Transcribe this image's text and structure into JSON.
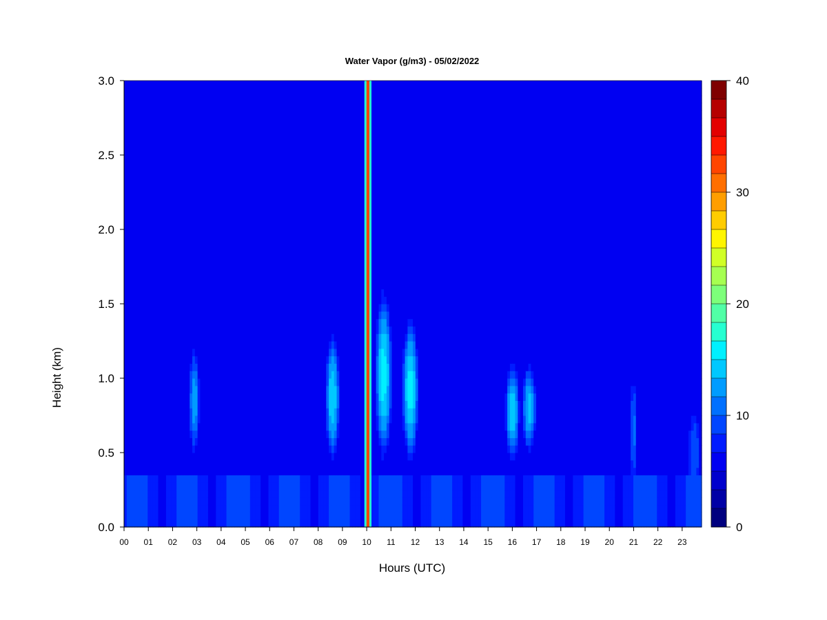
{
  "chart_data": {
    "type": "heatmap",
    "title": "Water Vapor (g/m3) - 05/02/2022",
    "xlabel": "Hours (UTC)",
    "ylabel": "Height (km)",
    "x_ticks": [
      "00",
      "01",
      "02",
      "03",
      "04",
      "05",
      "06",
      "07",
      "08",
      "09",
      "10",
      "11",
      "12",
      "13",
      "14",
      "15",
      "16",
      "17",
      "18",
      "19",
      "20",
      "21",
      "22",
      "23"
    ],
    "xlim": [
      0,
      23.8
    ],
    "y_ticks": [
      "0.0",
      "0.5",
      "1.0",
      "1.5",
      "2.0",
      "2.5",
      "3.0"
    ],
    "ylim": [
      0,
      3.0
    ],
    "colorbar": {
      "ticks": [
        "0",
        "10",
        "20",
        "30",
        "40"
      ],
      "range": [
        0,
        40
      ],
      "levels": 20,
      "colors": [
        "#00007f",
        "#0000a6",
        "#0000cd",
        "#0000f2",
        "#001bff",
        "#0046ff",
        "#0070ff",
        "#009cff",
        "#00c8ff",
        "#00f0ff",
        "#26ffd1",
        "#51ffa6",
        "#7dff7a",
        "#a6ff51",
        "#d1ff26",
        "#fff500",
        "#ffcc00",
        "#ff9e00",
        "#ff6f00",
        "#ff4500",
        "#ff1800",
        "#e30000",
        "#b60000",
        "#7f0000"
      ]
    },
    "background_value": 6,
    "upper_dry_value": 4,
    "features": [
      {
        "hour": 10.05,
        "height_from": 0.0,
        "height_to": 3.0,
        "width_h": 0.12,
        "value": 40,
        "note": "narrow vertical spike"
      },
      {
        "hour": 0.5,
        "height_from": 0.0,
        "height_to": 0.4,
        "width_h": 0.5,
        "value": 6
      },
      {
        "hour": 2.9,
        "height_from": 0.5,
        "height_to": 1.2,
        "width_h": 0.45,
        "value": 13
      },
      {
        "hour": 8.6,
        "height_from": 0.45,
        "height_to": 1.3,
        "width_h": 0.6,
        "value": 15
      },
      {
        "hour": 10.7,
        "height_from": 0.45,
        "height_to": 1.6,
        "width_h": 0.7,
        "value": 16
      },
      {
        "hour": 11.8,
        "height_from": 0.45,
        "height_to": 1.4,
        "width_h": 0.7,
        "value": 16
      },
      {
        "hour": 16.0,
        "height_from": 0.45,
        "height_to": 1.1,
        "width_h": 0.6,
        "value": 15
      },
      {
        "hour": 16.7,
        "height_from": 0.5,
        "height_to": 1.1,
        "width_h": 0.6,
        "value": 14
      },
      {
        "hour": 21.0,
        "height_from": 0.3,
        "height_to": 1.0,
        "width_h": 0.3,
        "value": 11
      },
      {
        "hour": 23.5,
        "height_from": 0.2,
        "height_to": 0.8,
        "width_h": 0.5,
        "value": 10
      }
    ]
  }
}
